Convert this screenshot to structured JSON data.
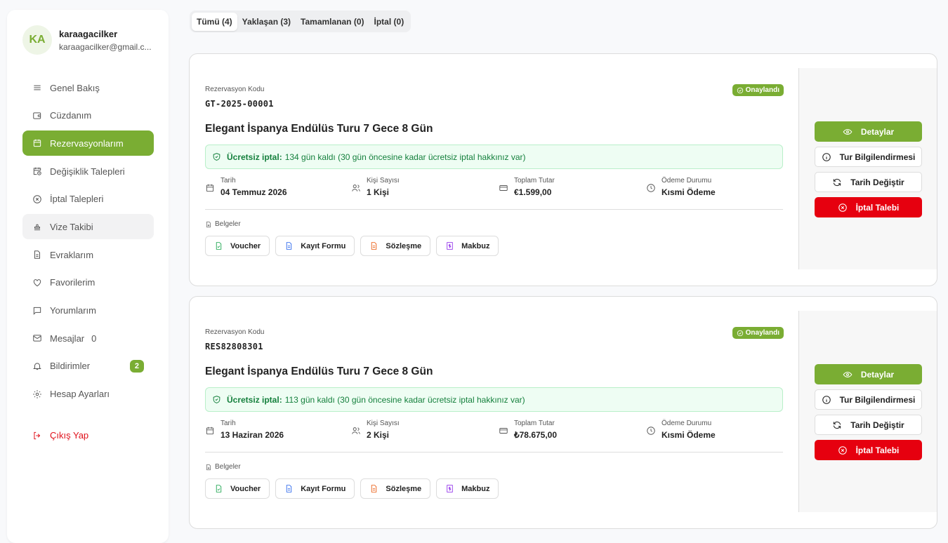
{
  "user": {
    "initials": "KA",
    "name": "karaagacilker",
    "email": "karaagacilker@gmail.c..."
  },
  "sidebar": {
    "items": [
      {
        "label": "Genel Bakış",
        "icon": "menu-icon"
      },
      {
        "label": "Cüzdanım",
        "icon": "wallet-icon"
      },
      {
        "label": "Rezervasyonlarım",
        "icon": "calendar-icon",
        "active": true
      },
      {
        "label": "Değişiklik Talepleri",
        "icon": "calendar-clock-icon"
      },
      {
        "label": "İptal Talepleri",
        "icon": "x-circle-icon"
      },
      {
        "label": "Vize Takibi",
        "icon": "stamp-icon"
      },
      {
        "label": "Evraklarım",
        "icon": "file-icon"
      },
      {
        "label": "Favorilerim",
        "icon": "heart-icon"
      },
      {
        "label": "Yorumlarım",
        "icon": "message-icon"
      },
      {
        "label": "Mesajlar",
        "icon": "mail-icon",
        "count": "0"
      },
      {
        "label": "Bildirimler",
        "icon": "bell-icon",
        "badge": "2"
      },
      {
        "label": "Hesap Ayarları",
        "icon": "gear-icon"
      }
    ],
    "logout": "Çıkış Yap"
  },
  "tabs": [
    {
      "label": "Tümü (4)",
      "active": true
    },
    {
      "label": "Yaklaşan (3)"
    },
    {
      "label": "Tamamlanan (0)"
    },
    {
      "label": "İptal (0)"
    }
  ],
  "labels": {
    "code": "Rezervasyon Kodu",
    "date": "Tarih",
    "people": "Kişi Sayısı",
    "total": "Toplam Tutar",
    "payment": "Ödeme Durumu",
    "docs": "Belgeler",
    "cancel_bold": "Ücretsiz iptal:"
  },
  "documents": [
    "Voucher",
    "Kayıt Formu",
    "Sözleşme",
    "Makbuz"
  ],
  "actions": {
    "details": "Detaylar",
    "info": "Tur Bilgilendirmesi",
    "change_date": "Tarih Değiştir",
    "cancel": "İptal Talebi"
  },
  "colors": {
    "accent": "#7aad33",
    "danger": "#e6000f",
    "success_text": "#15803d"
  },
  "reservations": [
    {
      "code": "GT-2025-00001",
      "status": "Onaylandı",
      "title": "Elegant İspanya Endülüs Turu 7 Gece 8 Gün",
      "cancel_text": "134 gün kaldı (30 gün öncesine kadar ücretsiz iptal hakkınız var)",
      "date": "04 Temmuz 2026",
      "people": "1 Kişi",
      "total": "€1.599,00",
      "payment": "Kısmi Ödeme"
    },
    {
      "code": "RES82808301",
      "status": "Onaylandı",
      "title": "Elegant İspanya Endülüs Turu 7 Gece 8 Gün",
      "cancel_text": "113 gün kaldı (30 gün öncesine kadar ücretsiz iptal hakkınız var)",
      "date": "13 Haziran 2026",
      "people": "2 Kişi",
      "total": "₺78.675,00",
      "payment": "Kısmi Ödeme"
    }
  ]
}
